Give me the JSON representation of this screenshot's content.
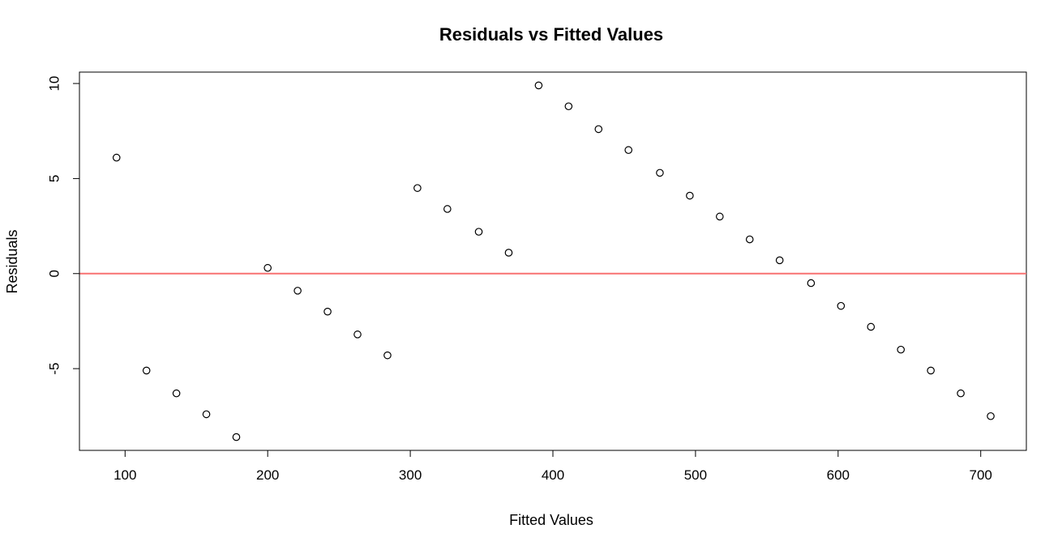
{
  "chart_data": {
    "type": "scatter",
    "title": "Residuals vs Fitted Values",
    "xlabel": "Fitted Values",
    "ylabel": "Residuals",
    "xlim": [
      68,
      732
    ],
    "ylim": [
      -9.3,
      10.6
    ],
    "xticks": [
      100,
      200,
      300,
      400,
      500,
      600,
      700
    ],
    "yticks": [
      -5,
      0,
      5,
      10
    ],
    "xtick_labels": [
      "100",
      "200",
      "300",
      "400",
      "500",
      "600",
      "700"
    ],
    "ytick_labels": [
      "-5",
      "0",
      "5",
      "10"
    ],
    "grid": false,
    "reference_line": {
      "y": 0,
      "color": "#f87171"
    },
    "point_color": "#000000",
    "x": [
      94,
      115,
      136,
      157,
      178,
      200,
      221,
      242,
      263,
      284,
      305,
      326,
      348,
      369,
      390,
      411,
      432,
      453,
      475,
      496,
      517,
      538,
      559,
      581,
      602,
      623,
      644,
      665,
      686,
      707
    ],
    "y": [
      6.1,
      -5.1,
      -6.3,
      -7.4,
      -8.6,
      0.3,
      -0.9,
      -2.0,
      -3.2,
      -4.3,
      4.5,
      3.4,
      2.2,
      1.1,
      9.9,
      8.8,
      7.6,
      6.5,
      5.3,
      4.1,
      3.0,
      1.8,
      0.7,
      -0.5,
      -1.7,
      -2.8,
      -4.0,
      -5.1,
      -6.3,
      -7.5
    ]
  }
}
